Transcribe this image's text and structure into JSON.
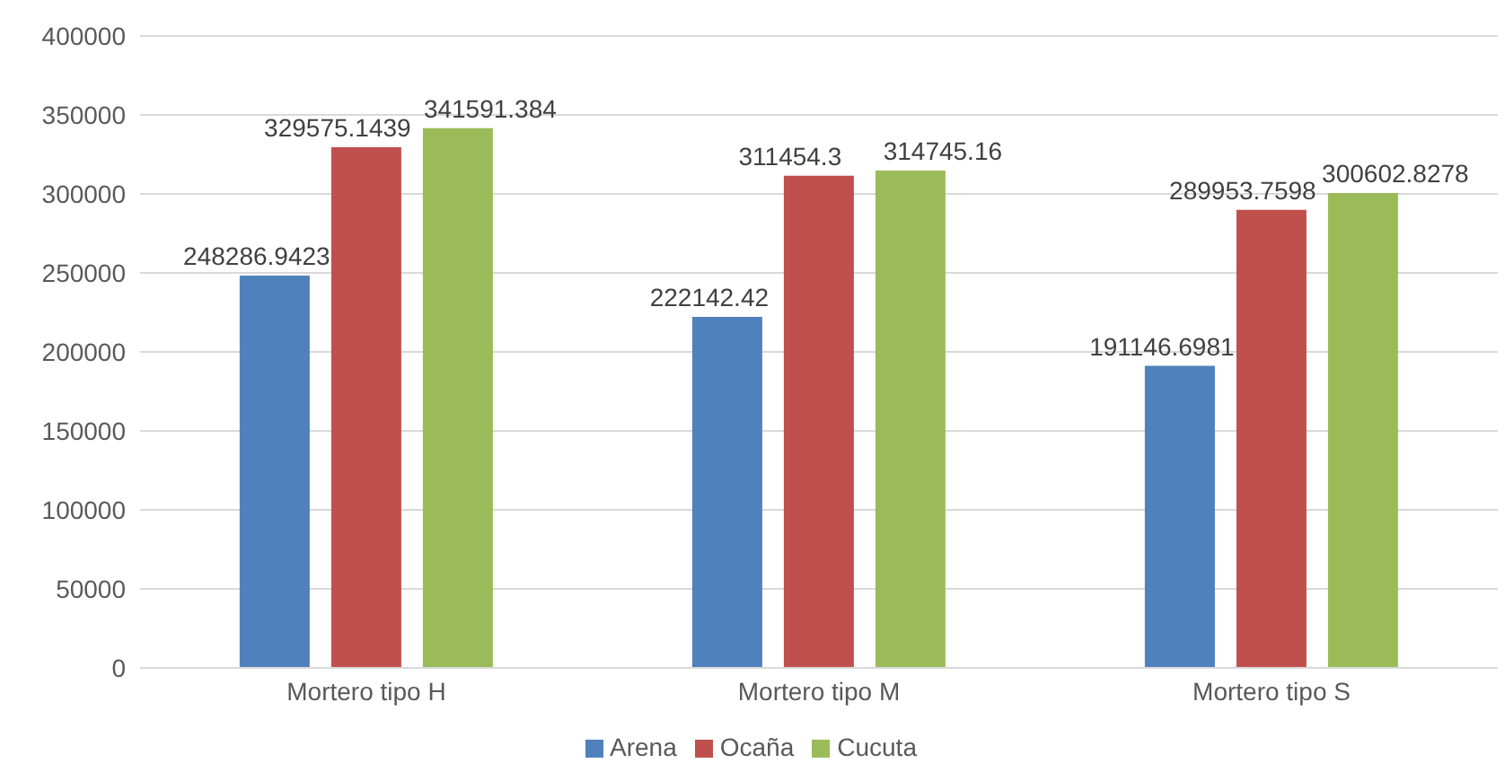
{
  "chart_data": {
    "type": "bar",
    "categories": [
      "Mortero tipo H",
      "Mortero tipo M",
      "Mortero tipo S"
    ],
    "series": [
      {
        "name": "Arena",
        "color": "#4f81bd",
        "values": [
          248286.9423,
          222142.42,
          191146.6981
        ]
      },
      {
        "name": "Ocaña",
        "color": "#c0504d",
        "values": [
          329575.1439,
          311454.3,
          289953.7598
        ]
      },
      {
        "name": "Cucuta",
        "color": "#9bbb59",
        "values": [
          341591.384,
          314745.16,
          300602.8278
        ]
      }
    ],
    "ylim": [
      0,
      400000
    ],
    "yticks": [
      0,
      50000,
      100000,
      150000,
      200000,
      250000,
      300000,
      350000,
      400000
    ],
    "grid": "y",
    "legend": "bottom",
    "data_labels": true
  }
}
